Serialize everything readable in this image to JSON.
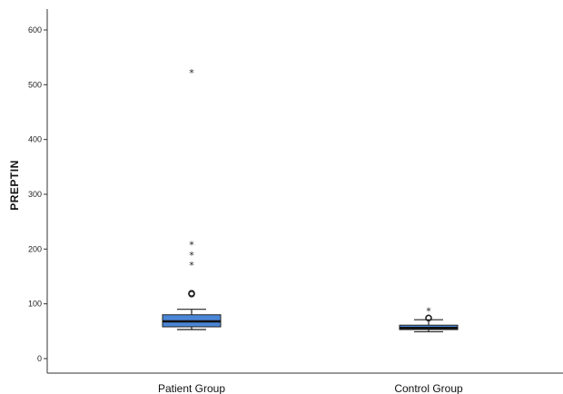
{
  "chart_data": {
    "type": "boxplot",
    "title": "",
    "xlabel": "",
    "ylabel": "PREPTIN",
    "ylim": [
      -25,
      640
    ],
    "yticks": [
      0,
      100,
      200,
      300,
      400,
      500,
      600
    ],
    "grid": false,
    "legend": "none",
    "box_color": "#4a86d6",
    "categories": [
      "Patient Group",
      "Control Group"
    ],
    "series": [
      {
        "category": "Patient Group",
        "whisker_low": 53,
        "q1": 58,
        "median": 68,
        "q3": 80,
        "whisker_high": 90,
        "outliers_mild": [
          118,
          119
        ],
        "outliers_extreme": [
          172,
          191,
          210,
          524
        ]
      },
      {
        "category": "Control Group",
        "whisker_low": 49,
        "q1": 53,
        "median": 56,
        "q3": 61,
        "whisker_high": 71,
        "outliers_mild": [
          74
        ],
        "outliers_extreme": [
          89
        ]
      }
    ]
  }
}
